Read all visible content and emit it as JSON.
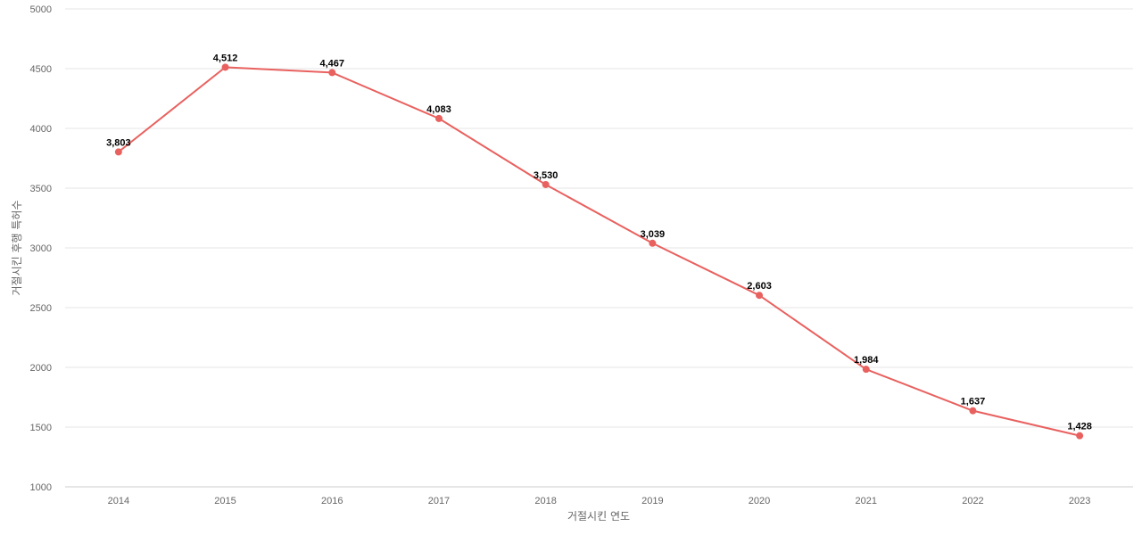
{
  "chart_data": {
    "type": "line",
    "title": "",
    "xlabel": "거절시킨 연도",
    "ylabel": "거절시킨 후행 특허수",
    "categories": [
      "2014",
      "2015",
      "2016",
      "2017",
      "2018",
      "2019",
      "2020",
      "2021",
      "2022",
      "2023"
    ],
    "series": [
      {
        "values": [
          3803,
          4512,
          4467,
          4083,
          3530,
          3039,
          2603,
          1984,
          1637,
          1428
        ],
        "labels": [
          "3,803",
          "4,512",
          "4,467",
          "4,083",
          "3,530",
          "3,039",
          "2,603",
          "1,984",
          "1,637",
          "1,428"
        ],
        "color": "#e8615f"
      }
    ],
    "ylim": [
      1000,
      5000
    ],
    "yticks": [
      "1000",
      "1500",
      "2000",
      "2500",
      "3000",
      "3500",
      "4000",
      "4500",
      "5000"
    ],
    "grid": true,
    "legend": "none"
  }
}
